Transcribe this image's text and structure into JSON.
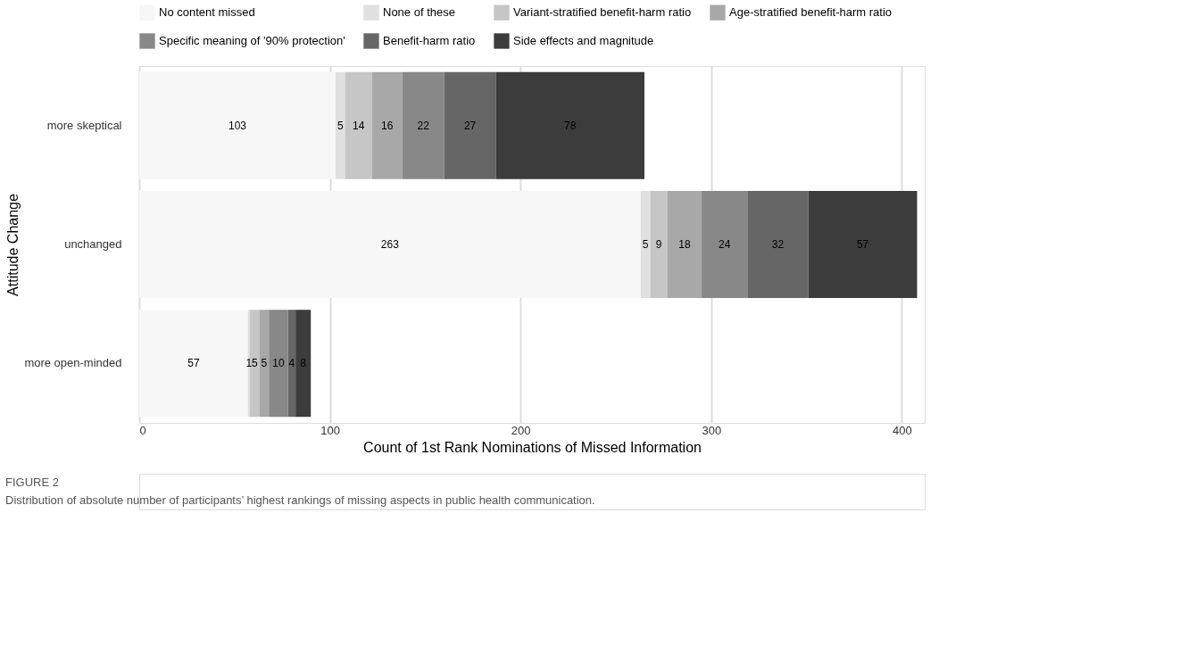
{
  "chart_data": {
    "type": "bar",
    "orientation": "horizontal",
    "stacked": true,
    "xlabel": "Count of 1st Rank Nominations of Missed Information",
    "ylabel": "Attitude Change",
    "categories": [
      "more skeptical",
      "unchanged",
      "more open-minded"
    ],
    "series": [
      {
        "name": "No content missed",
        "color": "#f7f7f7",
        "values": [
          103,
          263,
          57
        ]
      },
      {
        "name": "None of these",
        "color": "#e0e0e0",
        "values": [
          5,
          5,
          1
        ]
      },
      {
        "name": "Variant-stratified benefit-harm ratio",
        "color": "#c6c6c6",
        "values": [
          14,
          9,
          5
        ]
      },
      {
        "name": "Age-stratified benefit-harm ratio",
        "color": "#a8a8a8",
        "values": [
          16,
          18,
          5
        ]
      },
      {
        "name": "Specific meaning of '90% protection'",
        "color": "#888888",
        "values": [
          22,
          24,
          10
        ]
      },
      {
        "name": "Benefit-harm ratio",
        "color": "#666666",
        "values": [
          27,
          32,
          4
        ]
      },
      {
        "name": "Side effects and magnitude",
        "color": "#3c3c3c",
        "values": [
          78,
          57,
          8
        ]
      }
    ],
    "xlim": [
      0,
      412
    ],
    "xticks": [
      0,
      100,
      200,
      300,
      400
    ],
    "grid": "x",
    "legend": "top",
    "data_labels": true,
    "annotations": [
      "FIGURE 2",
      "Distribution of absolute number of participants’ highest rankings of missing aspects in public health communication."
    ]
  }
}
